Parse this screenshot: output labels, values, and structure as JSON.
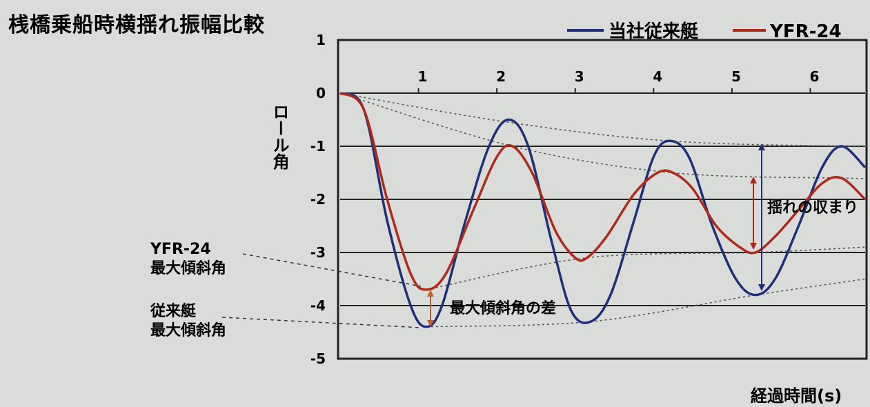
{
  "chart_data": {
    "type": "line",
    "title": "桟橋乗船時横揺れ振幅比較",
    "xlabel": "経過時間(s)",
    "ylabel": "ロール角",
    "x_ticks": [
      "1",
      "2",
      "3",
      "4",
      "5",
      "6"
    ],
    "y_ticks": [
      "1",
      "0",
      "-1",
      "-2",
      "-3",
      "-4",
      "-5"
    ],
    "xlim": [
      0,
      6.7
    ],
    "ylim": [
      -5,
      1
    ],
    "grid": "horizontal",
    "legend_position": "top-right",
    "series": [
      {
        "name": "当社従来艇",
        "color": "#1f2f7a",
        "x": [
          0,
          0.3,
          0.6,
          0.9,
          1.1,
          1.3,
          1.6,
          1.9,
          2.15,
          2.4,
          2.7,
          2.95,
          3.2,
          3.45,
          3.75,
          4.0,
          4.2,
          4.45,
          4.75,
          5.05,
          5.3,
          5.55,
          5.85,
          6.15,
          6.4,
          6.7
        ],
        "y": [
          0,
          -0.3,
          -2.4,
          -4.0,
          -4.4,
          -4.0,
          -2.4,
          -1.0,
          -0.5,
          -1.0,
          -2.8,
          -4.1,
          -4.3,
          -3.8,
          -2.4,
          -1.2,
          -0.9,
          -1.2,
          -2.5,
          -3.5,
          -3.8,
          -3.5,
          -2.5,
          -1.4,
          -1.0,
          -1.4
        ]
      },
      {
        "name": "YFR-24",
        "color": "#b02a1c",
        "x": [
          0,
          0.3,
          0.6,
          0.9,
          1.1,
          1.35,
          1.7,
          2.0,
          2.2,
          2.45,
          2.75,
          3.0,
          3.15,
          3.4,
          3.75,
          4.05,
          4.25,
          4.5,
          4.8,
          5.1,
          5.3,
          5.55,
          5.85,
          6.15,
          6.4,
          6.7
        ],
        "y": [
          0,
          -0.3,
          -2.0,
          -3.4,
          -3.7,
          -3.4,
          -2.2,
          -1.2,
          -1.0,
          -1.5,
          -2.6,
          -3.1,
          -3.1,
          -2.7,
          -1.9,
          -1.5,
          -1.5,
          -1.8,
          -2.5,
          -2.9,
          -3.0,
          -2.7,
          -2.2,
          -1.7,
          -1.6,
          -2.0
        ]
      }
    ],
    "envelopes": [
      {
        "name": "conventional-upper",
        "x": [
          0,
          2.15,
          4.2,
          6.4,
          6.7
        ],
        "y": [
          0,
          -0.55,
          -0.9,
          -1.0,
          -1.0
        ]
      },
      {
        "name": "conventional-lower",
        "x": [
          1.1,
          3.2,
          5.3,
          6.7
        ],
        "y": [
          -4.4,
          -4.3,
          -3.8,
          -3.5
        ]
      },
      {
        "name": "yfr24-upper",
        "x": [
          0,
          2.2,
          4.25,
          6.4,
          6.7
        ],
        "y": [
          0,
          -1.0,
          -1.5,
          -1.6,
          -1.6
        ]
      },
      {
        "name": "yfr24-lower",
        "x": [
          1.1,
          3.15,
          5.3,
          6.7
        ],
        "y": [
          -3.7,
          -3.1,
          -3.0,
          -2.9
        ]
      }
    ],
    "annotations": {
      "yfr_max_line1": "YFR-24",
      "yfr_max_line2": "最大傾斜角",
      "conv_max_line1": "従来艇",
      "conv_max_line2": "最大傾斜角",
      "max_angle_diff": "最大傾斜角の差",
      "settling": "揺れの収まり"
    }
  }
}
